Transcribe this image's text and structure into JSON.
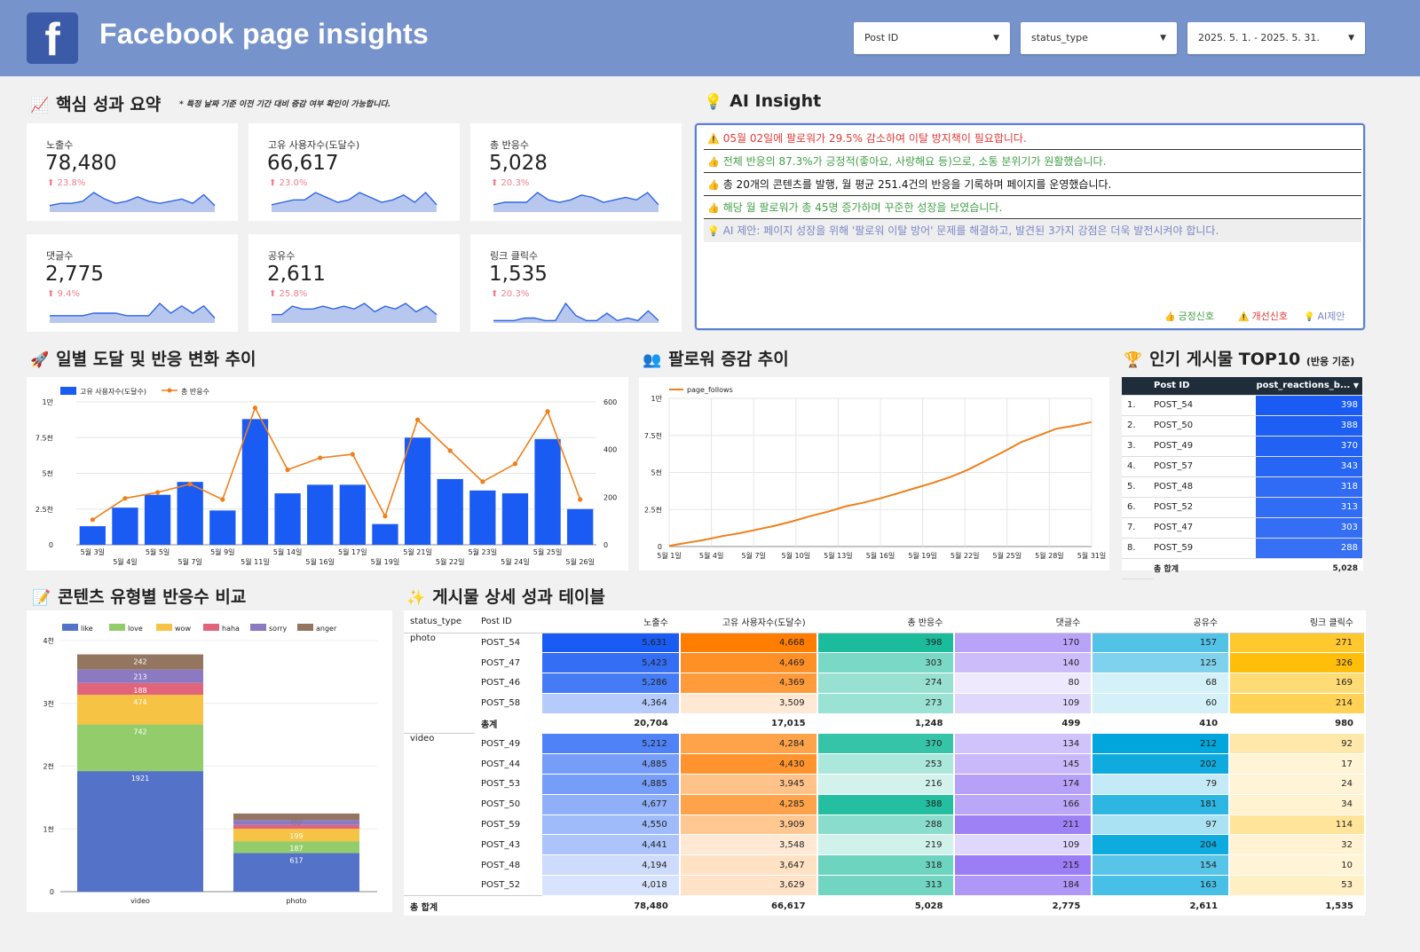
{
  "header": {
    "logo": "f",
    "title": "Facebook page insights",
    "filters": [
      {
        "label": "Post ID"
      },
      {
        "label": "status_type"
      },
      {
        "label": "2025. 5. 1. - 2025. 5. 31."
      }
    ],
    "bg": "#7793cb"
  },
  "summary": {
    "icon": "📈",
    "title": "핵심 성과 요약",
    "note": "* 특정 날짜 기준 이전 기간 대비 증감 여부 확인이 가능합니다.",
    "cards": [
      {
        "label": "노출수",
        "value": "78,480",
        "change": "⬆ 23.8%",
        "spark": [
          3,
          4,
          4,
          5,
          9,
          6,
          4,
          5,
          7,
          5,
          4,
          5,
          6,
          4,
          8,
          3
        ]
      },
      {
        "label": "고유 사용자수(도달수)",
        "value": "66,617",
        "change": "⬆ 23.0%",
        "spark": [
          3,
          4,
          5,
          5,
          8,
          6,
          4,
          5,
          8,
          6,
          4,
          5,
          7,
          4,
          8,
          3
        ]
      },
      {
        "label": "총 반응수",
        "value": "5,028",
        "change": "⬆ 20.3%",
        "spark": [
          3,
          4,
          4,
          4,
          8,
          5,
          4,
          5,
          7,
          6,
          4,
          5,
          6,
          5,
          8,
          3
        ]
      },
      {
        "label": "댓글수",
        "value": "2,775",
        "change": "⬆ 9.4%",
        "spark": [
          3,
          3,
          3,
          3,
          4,
          4,
          4,
          3,
          3,
          3,
          8,
          4,
          7,
          4,
          7,
          2
        ]
      },
      {
        "label": "공유수",
        "value": "2,611",
        "change": "⬆ 25.8%",
        "spark": [
          3,
          3,
          6,
          5,
          5,
          6,
          5,
          6,
          5,
          7,
          4,
          6,
          5,
          7,
          4,
          6,
          3
        ]
      },
      {
        "label": "링크 클릭수",
        "value": "1,535",
        "change": "⬆ 20.3%",
        "spark": [
          1,
          1,
          1,
          2,
          2,
          1,
          1,
          8,
          3,
          1,
          1,
          4,
          1,
          2,
          1,
          5,
          1
        ]
      }
    ]
  },
  "insight": {
    "icon": "💡",
    "title": "AI Insight",
    "rows": [
      {
        "icon": "⚠️",
        "text": "05월 02일에 팔로워가 29.5% 감소하여 이탈 방지책이 필요합니다.",
        "color": "#e53935"
      },
      {
        "icon": "👍",
        "text": "전체 반응의 87.3%가 긍정적(좋아요, 사랑해요 등)으로, 소통 분위기가 원활했습니다.",
        "color": "#43a047"
      },
      {
        "icon": "👍",
        "text": "총 20개의 콘텐츠를 발행, 월 평균 251.4건의 반응을 기록하며 페이지를 운영했습니다.",
        "color": "#111111"
      },
      {
        "icon": "👍",
        "text": "해당 월 팔로워가 총 45명 증가하며 꾸준한 성장을 보였습니다.",
        "color": "#43a047"
      },
      {
        "icon": "💡",
        "text": "AI 제안: 페이지 성장을 위해 '팔로워 이탈 방어' 문제를 해결하고, 발견된 3가지 강점은 더욱 발전시켜야 합니다.",
        "color": "#7b86c6"
      }
    ],
    "legend": [
      {
        "icon": "👍",
        "label": "긍정신호",
        "color": "#43a047"
      },
      {
        "icon": "⚠️",
        "label": "개선신호",
        "color": "#e53935"
      },
      {
        "icon": "💡",
        "label": "AI제안",
        "color": "#7b86c6"
      }
    ]
  },
  "daily": {
    "icon": "🚀",
    "title": "일별 도달 및 반응 변화 추이"
  },
  "followers": {
    "icon": "👥",
    "title": "팔로워 증감 추이"
  },
  "top10": {
    "icon": "🏆",
    "title": "인기 게시물 TOP10",
    "subtitle": "(반응 기준)",
    "col1": "Post ID",
    "col2": "post_reactions_b...",
    "sort_icon": "▼",
    "rows": [
      {
        "rank": "1.",
        "id": "POST_54",
        "v": "398"
      },
      {
        "rank": "2.",
        "id": "POST_50",
        "v": "388"
      },
      {
        "rank": "3.",
        "id": "POST_49",
        "v": "370"
      },
      {
        "rank": "4.",
        "id": "POST_57",
        "v": "343"
      },
      {
        "rank": "5.",
        "id": "POST_48",
        "v": "318"
      },
      {
        "rank": "6.",
        "id": "POST_52",
        "v": "313"
      },
      {
        "rank": "7.",
        "id": "POST_47",
        "v": "303"
      },
      {
        "rank": "8.",
        "id": "POST_59",
        "v": "288"
      }
    ],
    "total_label": "총 합계",
    "total": "5,028"
  },
  "content_type": {
    "icon": "📝",
    "title": "콘텐츠 유형별 반응수 비교"
  },
  "detail": {
    "icon": "✨",
    "title": "게시물 상세 성과 테이블",
    "columns": [
      "status_type",
      "Post ID",
      "노출수",
      "고유 사용자수(도달수)",
      "총 반응수",
      "댓글수",
      "공유수",
      "링크 클릭수"
    ],
    "groups": [
      {
        "type": "photo",
        "rows": [
          [
            "POST_54",
            "5,631",
            "4,668",
            "398",
            "170",
            "157",
            "271"
          ],
          [
            "POST_47",
            "5,423",
            "4,469",
            "303",
            "140",
            "125",
            "326"
          ],
          [
            "POST_46",
            "5,286",
            "4,369",
            "274",
            "80",
            "68",
            "169"
          ],
          [
            "POST_58",
            "4,364",
            "3,509",
            "273",
            "109",
            "60",
            "214"
          ]
        ],
        "subtotal": [
          "총계",
          "20,704",
          "17,015",
          "1,248",
          "499",
          "410",
          "980"
        ]
      },
      {
        "type": "video",
        "rows": [
          [
            "POST_49",
            "5,212",
            "4,284",
            "370",
            "134",
            "212",
            "92"
          ],
          [
            "POST_44",
            "4,885",
            "4,430",
            "253",
            "145",
            "202",
            "17"
          ],
          [
            "POST_53",
            "4,885",
            "3,945",
            "216",
            "174",
            "79",
            "24"
          ],
          [
            "POST_50",
            "4,677",
            "4,285",
            "388",
            "166",
            "181",
            "34"
          ],
          [
            "POST_59",
            "4,550",
            "3,909",
            "288",
            "211",
            "97",
            "114"
          ],
          [
            "POST_43",
            "4,441",
            "3,548",
            "219",
            "109",
            "204",
            "32"
          ],
          [
            "POST_48",
            "4,194",
            "3,647",
            "318",
            "215",
            "154",
            "10"
          ],
          [
            "POST_52",
            "4,018",
            "3,629",
            "313",
            "184",
            "163",
            "53"
          ]
        ]
      }
    ],
    "total": [
      "총 합계",
      "78,480",
      "66,617",
      "5,028",
      "2,775",
      "2,611",
      "1,535"
    ]
  },
  "chart_data": [
    {
      "type": "bar+line",
      "title": "일별 도달 및 반응 변화 추이",
      "categories": [
        "5월 3일",
        "5월 4일",
        "5월 5일",
        "5월 7일",
        "5월 9일",
        "5월 11일",
        "5월 14일",
        "5월 16일",
        "5월 17일",
        "5월 19일",
        "5월 21일",
        "5월 22일",
        "5월 23일",
        "5월 24일",
        "5월 25일",
        "5월 26일"
      ],
      "series": [
        {
          "name": "고유 사용자수(도달수)",
          "type": "bar",
          "axis": "left",
          "color": "#1a5cf3",
          "values": [
            1300,
            2600,
            3500,
            4400,
            2400,
            8800,
            3600,
            4200,
            4200,
            1450,
            7500,
            4600,
            3800,
            3600,
            7400,
            2500
          ]
        },
        {
          "name": "총 반응수",
          "type": "line",
          "axis": "right",
          "color": "#f07f1b",
          "values": [
            105,
            195,
            220,
            255,
            190,
            575,
            315,
            365,
            380,
            120,
            525,
            395,
            265,
            340,
            560,
            190
          ]
        }
      ],
      "y_left": {
        "ticks": [
          "0",
          "2.5천",
          "5천",
          "7.5천",
          "1만"
        ],
        "range": [
          0,
          10000
        ]
      },
      "y_right": {
        "ticks": [
          "0",
          "200",
          "400",
          "600"
        ],
        "range": [
          0,
          600
        ]
      }
    },
    {
      "type": "line",
      "title": "팔로워 증감 추이",
      "legend": "page_follows",
      "color": "#f07f1b",
      "x_ticks": [
        "5월 1일",
        "5월 4일",
        "5월 7일",
        "5월 10일",
        "5월 13일",
        "5월 16일",
        "5월 19일",
        "5월 22일",
        "5월 25일",
        "5월 28일",
        "5월 31일"
      ],
      "y_ticks": [
        "0",
        "2.5천",
        "5천",
        "7.5천",
        "1만"
      ],
      "ylim": [
        0,
        10000
      ],
      "values": [
        50,
        250,
        450,
        700,
        900,
        1150,
        1400,
        1700,
        2050,
        2350,
        2700,
        2950,
        3250,
        3600,
        3950,
        4300,
        4700,
        5200,
        5800,
        6400,
        7050,
        7500,
        7950,
        8150,
        8400
      ]
    },
    {
      "type": "stacked_bar",
      "title": "콘텐츠 유형별 반응수 비교",
      "categories": [
        "video",
        "photo"
      ],
      "ylim": [
        0,
        4000
      ],
      "y_ticks": [
        "0",
        "1천",
        "2천",
        "3천",
        "4천"
      ],
      "series": [
        {
          "name": "like",
          "color": "#5473c8",
          "values": [
            1921,
            617
          ]
        },
        {
          "name": "love",
          "color": "#93cd6b",
          "values": [
            742,
            187
          ]
        },
        {
          "name": "wow",
          "color": "#f6c344",
          "values": [
            474,
            199
          ]
        },
        {
          "name": "haha",
          "color": "#e0657a",
          "values": [
            188,
            60
          ]
        },
        {
          "name": "sorry",
          "color": "#8b79c2",
          "values": [
            213,
            80
          ]
        },
        {
          "name": "anger",
          "color": "#937560",
          "values": [
            242,
            102
          ]
        }
      ]
    }
  ]
}
